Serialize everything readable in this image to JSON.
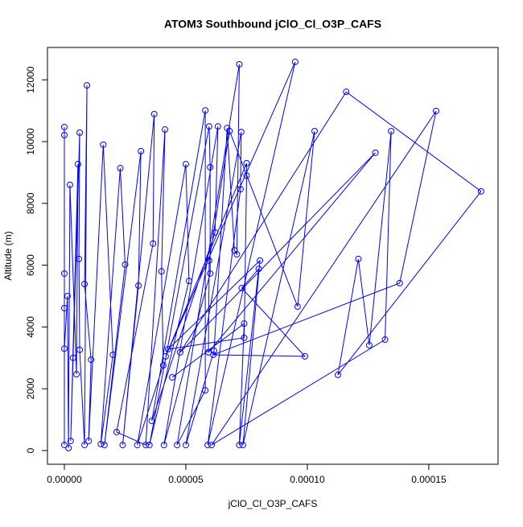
{
  "chart_data": {
    "type": "line",
    "title": "ATOM3 Southbound jClO_Cl_O3P_CAFS",
    "xlabel": "jClO_Cl_O3P_CAFS",
    "ylabel": "Altitude (m)",
    "color": "#0000ff",
    "x": [
      0,
      0,
      0,
      0,
      0,
      0,
      1.3e-06,
      1.7e-06,
      2.3e-06,
      5e-06,
      5.6e-06,
      2.6e-06,
      3.6e-06,
      6.3e-06,
      6e-06,
      6.3e-06,
      8.3e-06,
      9.3e-06,
      8.3e-06,
      1.1e-05,
      1e-05,
      1.6e-05,
      2e-05,
      1.5e-05,
      2.3e-05,
      2.5e-05,
      1.65e-05,
      3.15e-05,
      3.05e-05,
      2.4e-05,
      3.7e-05,
      3.65e-05,
      2.15e-05,
      3.35e-05,
      4.14e-05,
      4e-05,
      4.07e-05,
      3e-05,
      5e-05,
      5.13e-05,
      3.5e-05,
      5.96e-05,
      6e-05,
      6e-05,
      4.1e-05,
      6.32e-05,
      6.2e-05,
      3.6e-05,
      5.8e-05,
      5.8e-05,
      4.64e-05,
      7.2e-05,
      7.1e-05,
      7e-05,
      6.7e-05,
      6.16e-05,
      5e-05,
      7.28e-05,
      7.25e-05,
      5.9e-05,
      9.5e-05,
      4.17e-05,
      7.5e-05,
      7.5e-05,
      7.4e-05,
      4.27e-05,
      8.05e-05,
      7.35e-05,
      0.000103,
      9.6e-05,
      6.8e-05,
      5.96e-05,
      5.93e-05,
      0.000128,
      4.77e-05,
      0.000116,
      0.0001715,
      0.0001126,
      0.000121,
      0.0001255,
      0.0001345,
      0.000132,
      6.06e-05,
      0.000153,
      0.000138,
      6.13e-05,
      9.9e-05,
      7.3e-05,
      8e-05,
      7.2e-05,
      7.4e-05,
      4.44e-05
    ],
    "values": [
      10470,
      10210,
      180,
      5730,
      4610,
      3300,
      5000,
      80,
      8600,
      2470,
      9270,
      310,
      3000,
      10290,
      6200,
      3260,
      180,
      11820,
      5390,
      2940,
      310,
      9900,
      3100,
      210,
      9140,
      6020,
      180,
      9690,
      5340,
      180,
      10890,
      6700,
      600,
      180,
      10390,
      5800,
      2760,
      180,
      9270,
      5490,
      180,
      10490,
      9170,
      5730,
      180,
      10490,
      7060,
      960,
      11010,
      1950,
      180,
      12500,
      6350,
      6480,
      10440,
      3230,
      180,
      10310,
      8460,
      180,
      12580,
      3050,
      9300,
      8900,
      3650,
      3280,
      6150,
      180,
      10340,
      4660,
      10340,
      6150,
      3180,
      9640,
      3180,
      11610,
      8390,
      2450,
      6200,
      3410,
      10340,
      3590,
      180,
      10990,
      5420,
      3100,
      3050,
      5260,
      5880,
      180,
      4110,
      2370
    ],
    "xlim": [
      -6.95e-06,
      0.0001785
    ],
    "ylim": [
      -443,
      13047
    ],
    "xticks": [
      {
        "value": 0,
        "label": "0.00000"
      },
      {
        "value": 5e-05,
        "label": "0.00005"
      },
      {
        "value": 0.0001,
        "label": "0.00010"
      },
      {
        "value": 0.00015,
        "label": "0.00015"
      }
    ],
    "yticks": [
      0,
      2000,
      4000,
      6000,
      8000,
      10000,
      12000
    ]
  }
}
